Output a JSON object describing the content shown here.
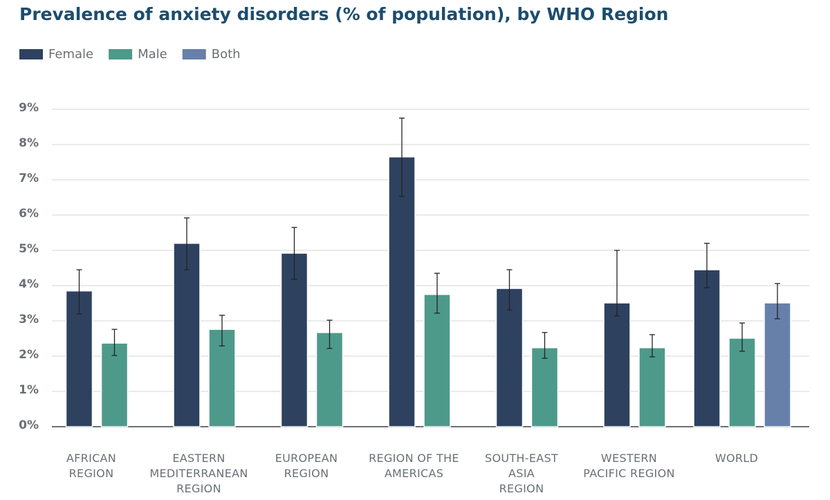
{
  "chart_data": {
    "type": "bar",
    "title": "Prevalence of anxiety disorders (% of population), by WHO Region",
    "categories": [
      "AFRICAN\nREGION",
      "EASTERN\nMEDITERRANEAN\nREGION",
      "EUROPEAN\nREGION",
      "REGION OF THE\nAMERICAS",
      "SOUTH-EAST\nASIA\nREGION",
      "WESTERN\nPACIFIC REGION",
      "WORLD"
    ],
    "series": [
      {
        "name": "Female",
        "color": "#2e4260",
        "values": [
          3.85,
          5.2,
          4.92,
          7.65,
          3.92,
          3.51,
          4.45
        ],
        "lower": [
          3.2,
          4.45,
          4.18,
          6.53,
          3.31,
          3.14,
          3.94
        ],
        "upper": [
          4.45,
          5.92,
          5.65,
          8.75,
          4.45,
          5.0,
          5.2
        ]
      },
      {
        "name": "Male",
        "color": "#4e9a8a",
        "values": [
          2.37,
          2.76,
          2.67,
          3.75,
          2.24,
          2.24,
          2.51
        ],
        "lower": [
          2.02,
          2.29,
          2.22,
          3.22,
          1.94,
          1.98,
          2.14
        ],
        "upper": [
          2.76,
          3.16,
          3.02,
          4.35,
          2.67,
          2.61,
          2.94
        ]
      },
      {
        "name": "Both",
        "color": "#6680aa",
        "values": [
          null,
          null,
          null,
          null,
          null,
          null,
          3.51
        ],
        "lower": [
          null,
          null,
          null,
          null,
          null,
          null,
          3.06
        ],
        "upper": [
          null,
          null,
          null,
          null,
          null,
          null,
          4.06
        ]
      }
    ],
    "ylim": [
      0,
      9
    ],
    "yticks": [
      {
        "value": 0,
        "label": "0%"
      },
      {
        "value": 1,
        "label": "1%"
      },
      {
        "value": 2,
        "label": "2%"
      },
      {
        "value": 3,
        "label": "3%"
      },
      {
        "value": 4,
        "label": "4%"
      },
      {
        "value": 5,
        "label": "5%"
      },
      {
        "value": 6,
        "label": "6%"
      },
      {
        "value": 7,
        "label": "7%"
      },
      {
        "value": 8,
        "label": "8%"
      },
      {
        "value": 9,
        "label": "9%"
      }
    ],
    "grid": true,
    "legend": "top-left"
  }
}
